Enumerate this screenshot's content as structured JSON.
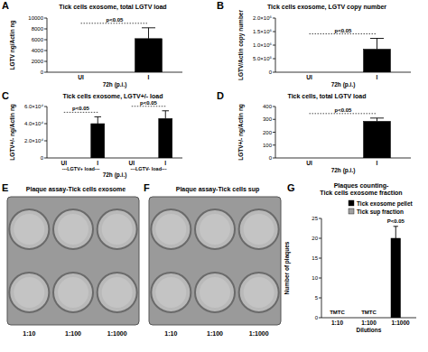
{
  "chart_data": [
    {
      "label": "A",
      "type": "bar",
      "title": "Tick cells exosome, total LGTV load",
      "y_label": "LGTV ng/Actin ng",
      "x_label": "72h (p.i.)",
      "categories": [
        "UI",
        "I"
      ],
      "values": [
        0,
        6200
      ],
      "errors": [
        null,
        2000
      ],
      "color": "#000000",
      "ylim": [
        0,
        10000
      ],
      "yticks": [
        0,
        2000,
        4000,
        6000,
        8000,
        10000
      ],
      "annotations": [
        "p<0.05"
      ]
    },
    {
      "label": "B",
      "type": "bar",
      "title": "Tick cells exosome, LGTV copy number",
      "y_label": "LGTV/Actin copy number",
      "x_label": "72h (p.i.)",
      "categories": [
        "UI",
        "I"
      ],
      "values": [
        0,
        850000
      ],
      "errors": [
        null,
        400000
      ],
      "color": "#000000",
      "ylim": [
        0,
        2000000
      ],
      "yticks": [
        0,
        {
          "value": 500000,
          "label": "5.0×10⁵"
        },
        {
          "value": 1000000,
          "label": "1.0×10⁶"
        },
        {
          "value": 1500000,
          "label": "1.5×10⁶"
        },
        {
          "value": 2000000,
          "label": "2.0×10⁶"
        }
      ],
      "annotations": [
        "p<0.05"
      ]
    },
    {
      "label": "C",
      "type": "bar",
      "title": "Tick cells exosome, LGTV+/- load",
      "y_label": "LGTV+/- ng/Actin ng",
      "x_label": "72h (p.i.)",
      "categories": [
        "UI",
        "I",
        "UI",
        "I"
      ],
      "groups": [
        "---LGTV+ load---",
        "---LGTV- load---"
      ],
      "values": [
        0,
        40000,
        0,
        46000
      ],
      "errors": [
        null,
        8000,
        null,
        9000
      ],
      "color": "#000000",
      "ylim": [
        0,
        60000
      ],
      "yticks": [
        0,
        {
          "value": 20000,
          "label": "2.0×10⁴"
        },
        {
          "value": 40000,
          "label": "4.0×10⁴"
        },
        {
          "value": 60000,
          "label": "6.0×10⁴"
        }
      ],
      "annotations": [
        "p<0.05",
        "p<0.05"
      ]
    },
    {
      "label": "D",
      "type": "bar",
      "title": "Tick cells, total LGTV load",
      "y_label": "LGTV+/- ng/Actin ng",
      "x_label": "72h (p.i.)",
      "categories": [
        "UI",
        "I"
      ],
      "values": [
        0,
        285
      ],
      "errors": [
        null,
        25
      ],
      "color": "#000000",
      "ylim": [
        0,
        400
      ],
      "yticks": [
        0,
        100,
        200,
        300,
        400
      ],
      "annotations": [
        "p<0.05"
      ]
    },
    {
      "label": "G",
      "type": "bar",
      "title": [
        "Plaques counting-",
        "Tick cells exosome fraction"
      ],
      "y_label": "Number of plaques",
      "x_label": "Dilutions",
      "categories": [
        "1:10",
        "1:100",
        "1:1000"
      ],
      "series": [
        {
          "name": "Tick exosome pellet",
          "color": "#000000",
          "values": [
            null,
            null,
            20
          ],
          "errors": [
            null,
            null,
            3
          ],
          "value_labels": [
            "TMTC",
            "TMTC",
            null
          ]
        },
        {
          "name": "Tick sup fraction",
          "color": "#a0a0a0",
          "values": [
            null,
            null,
            0
          ],
          "errors": [
            null,
            null,
            null
          ]
        }
      ],
      "ylim": [
        0,
        25
      ],
      "yticks": [
        0,
        5,
        10,
        15,
        20,
        25
      ],
      "legend": "top-right",
      "annotations": [
        "P<0.05"
      ]
    }
  ],
  "plaque_photos": [
    {
      "label": "E",
      "title": "Plaque assay-Tick cells exosome",
      "dilutions": [
        "1:10",
        "1:100",
        "1:1000"
      ]
    },
    {
      "label": "F",
      "title": "Plaque assay-Tick cells sup",
      "dilutions": [
        "1:10",
        "1:100",
        "1:1000"
      ]
    }
  ]
}
